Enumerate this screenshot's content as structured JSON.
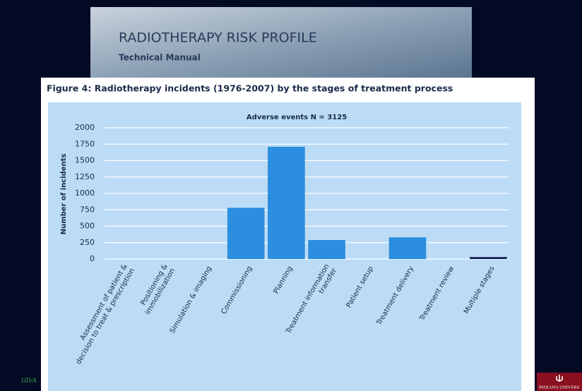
{
  "header": {
    "title": "RADIOTHERAPY RISK PROFILE",
    "subtitle": "Technical Manual"
  },
  "footer": {
    "left": "IJD/A",
    "right": "INDIANA UNIVERS"
  },
  "chart_data": {
    "type": "bar",
    "caption": "Figure 4: Radiotherapy incidents (1976-2007) by the stages of treatment process",
    "title": "Adverse events N = 3125",
    "y_label": "Number of incidents",
    "categories": [
      [
        "Assessment of patient &",
        "decision to treat & prescription"
      ],
      [
        "Positioning &",
        "immobilization"
      ],
      [
        "Simulation & imaging"
      ],
      [
        "Commissioning"
      ],
      [
        "Planning"
      ],
      [
        "Treatment information",
        "transfer"
      ],
      [
        "Patient setup"
      ],
      [
        "Treatment delivery"
      ],
      [
        "Treatment review"
      ],
      [
        "Multiple stages"
      ]
    ],
    "values": [
      0,
      0,
      0,
      780,
      1710,
      290,
      0,
      330,
      0,
      30
    ],
    "colors": [
      "#2b8ede",
      "#2b8ede",
      "#2b8ede",
      "#2b8ede",
      "#2b8ede",
      "#2b8ede",
      "#2b8ede",
      "#2b8ede",
      "#2b8ede",
      "#0d2150"
    ],
    "ylim": [
      0,
      2000
    ],
    "yticks": [
      0,
      250,
      500,
      750,
      1000,
      1250,
      1500,
      1750,
      2000
    ],
    "grid": true
  }
}
